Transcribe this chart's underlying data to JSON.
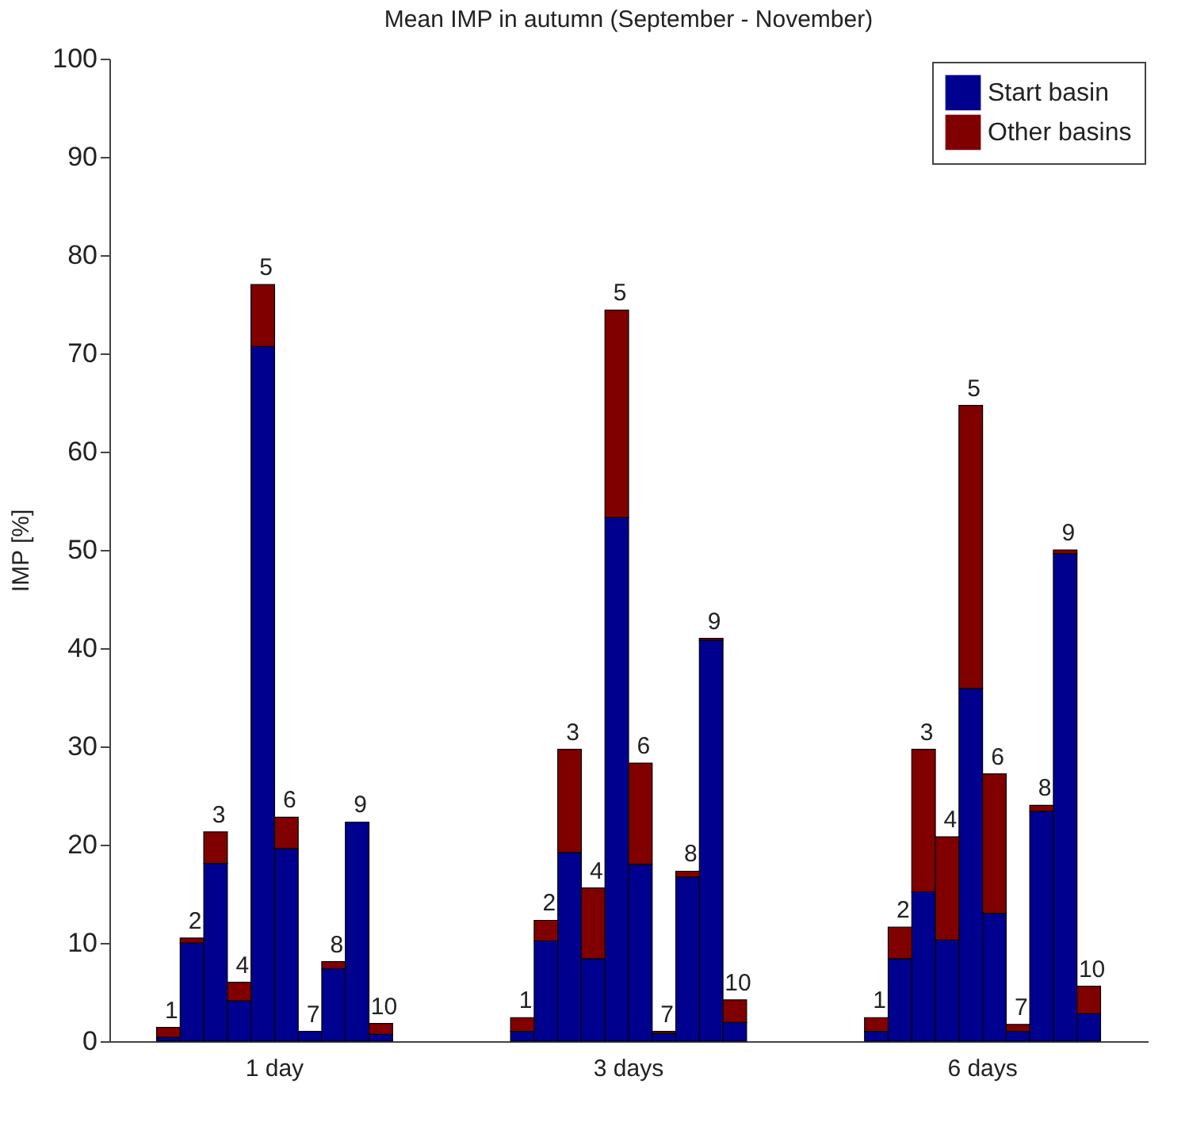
{
  "chart_data": {
    "type": "bar",
    "title": "Mean IMP in autumn (September - November)",
    "ylabel": "IMP [%]",
    "stacked": true,
    "legend": "top right",
    "categories": [
      null,
      null,
      "1",
      "2",
      "3",
      "4",
      "5",
      "6",
      "7",
      "8",
      "9",
      "10",
      null,
      null,
      null,
      null,
      null,
      "1",
      "2",
      "3",
      "4",
      "5",
      "6",
      "7",
      "8",
      "9",
      "10",
      null,
      null,
      null,
      null,
      null,
      "1",
      "2",
      "3",
      "4",
      "5",
      "6",
      "7",
      "8",
      "9",
      "10",
      null,
      null
    ],
    "ylim": [
      0,
      100
    ],
    "yticks": [
      0,
      10,
      20,
      30,
      40,
      50,
      60,
      70,
      80,
      90,
      100
    ],
    "series": [
      {
        "name": "Start basin",
        "color": "#00008f",
        "values": [
          null,
          null,
          0.4,
          10.0,
          18.1,
          4.1,
          70.7,
          19.6,
          1.0,
          7.4,
          22.3,
          0.7,
          null,
          null,
          null,
          null,
          null,
          1.0,
          10.2,
          19.2,
          8.4,
          53.3,
          18.0,
          0.8,
          16.7,
          40.8,
          1.9,
          null,
          null,
          null,
          null,
          null,
          1.0,
          8.4,
          15.2,
          10.3,
          35.9,
          13.0,
          1.0,
          23.4,
          49.6,
          2.8,
          null,
          null
        ]
      },
      {
        "name": "Other basins",
        "color": "#800000",
        "values": [
          null,
          null,
          1.0,
          0.5,
          3.2,
          1.9,
          6.3,
          3.2,
          0,
          0.7,
          0,
          1.1,
          null,
          null,
          null,
          null,
          null,
          1.4,
          2.1,
          10.5,
          7.2,
          21.1,
          10.3,
          0.2,
          0.6,
          0.2,
          2.3,
          null,
          null,
          null,
          null,
          null,
          1.4,
          3.2,
          14.5,
          10.5,
          28.8,
          14.2,
          0.7,
          0.6,
          0.4,
          2.8,
          null,
          null
        ]
      }
    ],
    "annotations": [
      "1 day",
      "3 days",
      "6 days"
    ]
  }
}
